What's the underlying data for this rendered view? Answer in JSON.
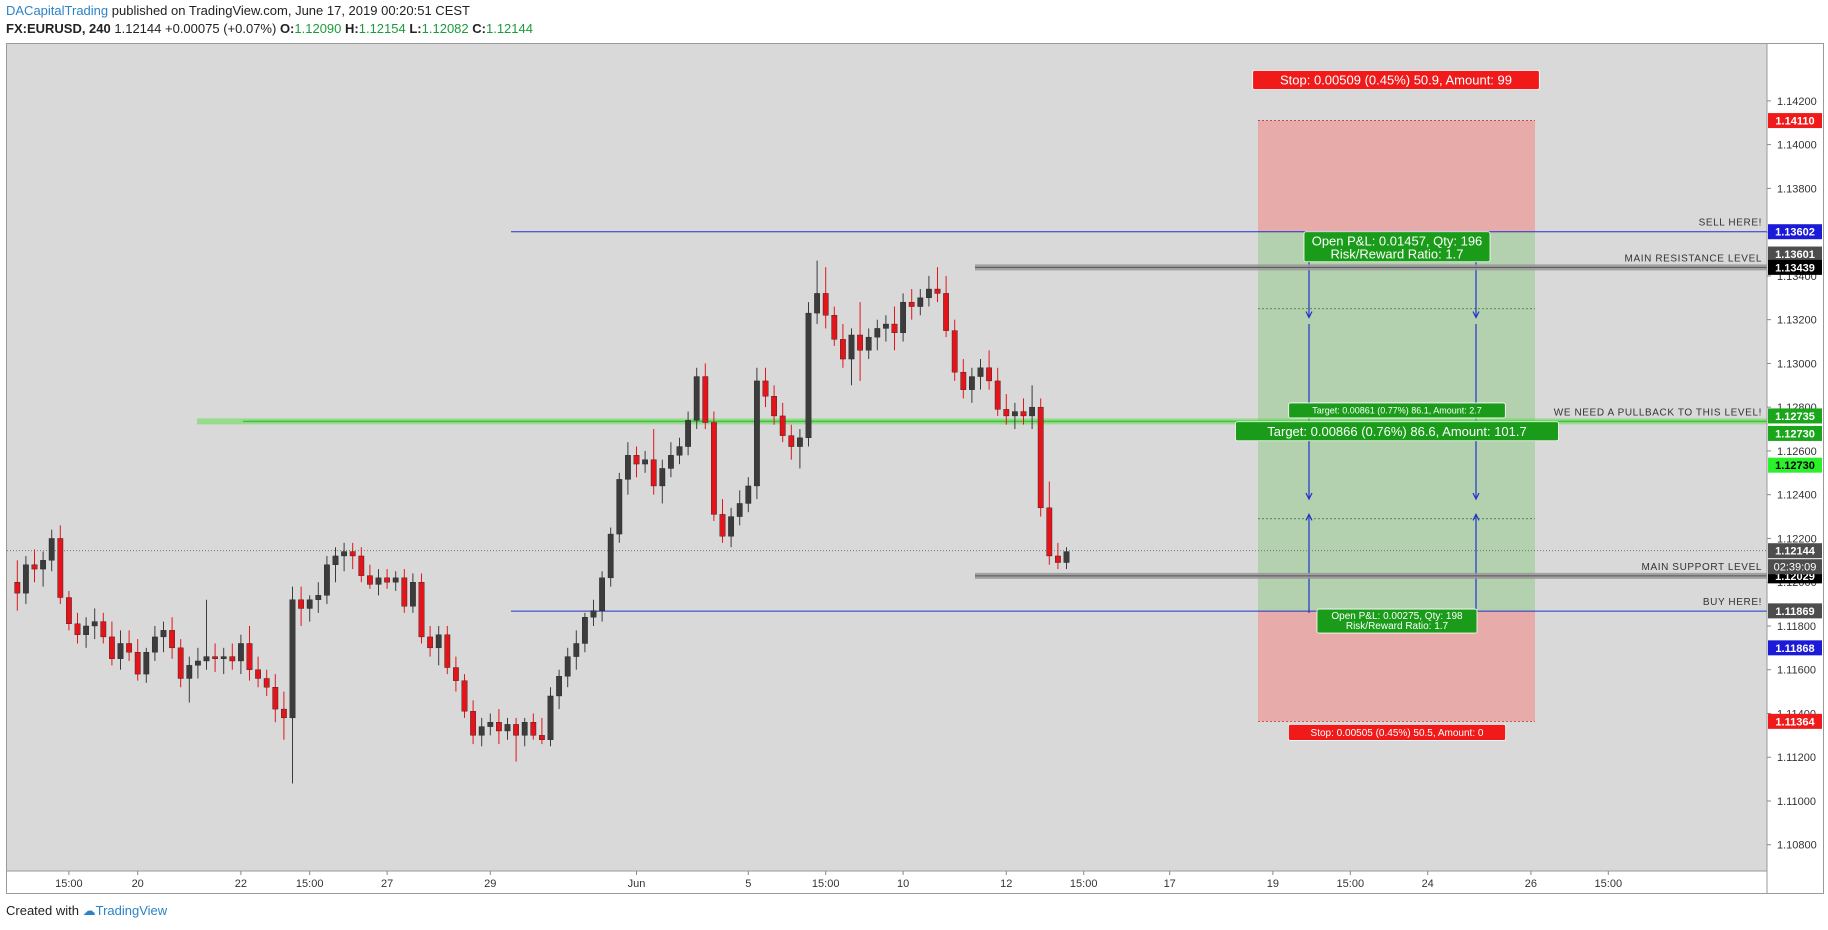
{
  "header": {
    "author": "DACapitalTrading",
    "published": "published on TradingView.com, June 17, 2019 00:20:51 CEST",
    "symbol": "FX:EURUSD, 240",
    "last": "1.12144",
    "change": "+0.00075 (+0.07%)",
    "o_label": "O:",
    "o_value": "1.12090",
    "h_label": "H:",
    "h_value": "1.12154",
    "l_label": "L:",
    "l_value": "1.12082",
    "c_label": "C:",
    "c_value": "1.12144"
  },
  "footer": {
    "created_with": "Created with",
    "brand": "TradingView"
  },
  "colors": {
    "background": "#d9d9d9",
    "candle_up": "#3c3c3c",
    "candle_down": "#e3151a",
    "stop_zone": "#e9a2a0",
    "target_zone": "#93c98c",
    "level_line": "#2233cc",
    "pullback_line": "#6ddc5c"
  },
  "chart_data": {
    "type": "candlestick",
    "symbol": "EURUSD",
    "timeframe": "240",
    "ylim": [
      1.1068,
      1.1446
    ],
    "y_ticks": [
      1.142,
      1.14,
      1.138,
      1.136,
      1.134,
      1.132,
      1.13,
      1.128,
      1.126,
      1.124,
      1.122,
      1.12,
      1.118,
      1.116,
      1.114,
      1.112,
      1.11,
      1.108
    ],
    "y_tick_labels": [
      "1.14200",
      "1.14000",
      "1.13800",
      "1.13600",
      "1.13400",
      "1.13200",
      "1.13000",
      "1.12800",
      "1.12600",
      "1.12400",
      "1.12200",
      "1.12000",
      "1.11800",
      "1.11600",
      "1.11400",
      "1.11200",
      "1.11000",
      "1.10800"
    ],
    "x_ticks": [
      {
        "label": "15:00",
        "bar": 6
      },
      {
        "label": "20",
        "bar": 14
      },
      {
        "label": "22",
        "bar": 26
      },
      {
        "label": "15:00",
        "bar": 34
      },
      {
        "label": "27",
        "bar": 43
      },
      {
        "label": "29",
        "bar": 55
      },
      {
        "label": "Jun",
        "bar": 72
      },
      {
        "label": "5",
        "bar": 85
      },
      {
        "label": "15:00",
        "bar": 94
      },
      {
        "label": "10",
        "bar": 103
      },
      {
        "label": "12",
        "bar": 115
      },
      {
        "label": "15:00",
        "bar": 124
      },
      {
        "label": "17",
        "bar": 134
      },
      {
        "label": "19",
        "bar": 146
      },
      {
        "label": "15:00",
        "bar": 155
      },
      {
        "label": "24",
        "bar": 164
      },
      {
        "label": "26",
        "bar": 176
      },
      {
        "label": "15:00",
        "bar": 185
      }
    ],
    "candles": [
      [
        1.12,
        1.121,
        1.1187,
        1.1195
      ],
      [
        1.1195,
        1.1212,
        1.119,
        1.1208
      ],
      [
        1.1208,
        1.1215,
        1.12,
        1.1206
      ],
      [
        1.1206,
        1.1214,
        1.1198,
        1.121
      ],
      [
        1.121,
        1.1224,
        1.1205,
        1.122
      ],
      [
        1.122,
        1.1226,
        1.119,
        1.1193
      ],
      [
        1.1193,
        1.1196,
        1.1178,
        1.1181
      ],
      [
        1.1181,
        1.1186,
        1.1172,
        1.1176
      ],
      [
        1.1176,
        1.1184,
        1.117,
        1.118
      ],
      [
        1.118,
        1.1188,
        1.1174,
        1.1182
      ],
      [
        1.1182,
        1.1186,
        1.1172,
        1.1175
      ],
      [
        1.1175,
        1.1182,
        1.1162,
        1.1165
      ],
      [
        1.1165,
        1.1178,
        1.116,
        1.1172
      ],
      [
        1.1172,
        1.1178,
        1.1164,
        1.1168
      ],
      [
        1.1168,
        1.1174,
        1.1155,
        1.1158
      ],
      [
        1.1158,
        1.117,
        1.1154,
        1.1168
      ],
      [
        1.1168,
        1.118,
        1.1164,
        1.1175
      ],
      [
        1.1175,
        1.1182,
        1.1168,
        1.1178
      ],
      [
        1.1178,
        1.1184,
        1.1165,
        1.117
      ],
      [
        1.117,
        1.1174,
        1.1152,
        1.1156
      ],
      [
        1.1156,
        1.1166,
        1.1145,
        1.1162
      ],
      [
        1.1162,
        1.117,
        1.1156,
        1.1164
      ],
      [
        1.1164,
        1.1192,
        1.116,
        1.1166
      ],
      [
        1.1166,
        1.1172,
        1.1159,
        1.1165
      ],
      [
        1.1165,
        1.117,
        1.1158,
        1.1166
      ],
      [
        1.1166,
        1.1172,
        1.116,
        1.1164
      ],
      [
        1.1164,
        1.1176,
        1.1158,
        1.1172
      ],
      [
        1.1172,
        1.118,
        1.1155,
        1.116
      ],
      [
        1.116,
        1.1166,
        1.1152,
        1.1156
      ],
      [
        1.1156,
        1.116,
        1.1148,
        1.1152
      ],
      [
        1.1152,
        1.1158,
        1.1136,
        1.1142
      ],
      [
        1.1142,
        1.115,
        1.1128,
        1.1138
      ],
      [
        1.1138,
        1.1198,
        1.1108,
        1.1192
      ],
      [
        1.1192,
        1.1198,
        1.118,
        1.1188
      ],
      [
        1.1188,
        1.1194,
        1.1182,
        1.1192
      ],
      [
        1.1192,
        1.12,
        1.1186,
        1.1194
      ],
      [
        1.1194,
        1.1212,
        1.119,
        1.1208
      ],
      [
        1.1208,
        1.1216,
        1.12,
        1.1212
      ],
      [
        1.1212,
        1.1218,
        1.1205,
        1.1214
      ],
      [
        1.1214,
        1.1218,
        1.1206,
        1.1212
      ],
      [
        1.1212,
        1.1216,
        1.12,
        1.1203
      ],
      [
        1.1203,
        1.1208,
        1.1197,
        1.1199
      ],
      [
        1.1199,
        1.1206,
        1.1194,
        1.1202
      ],
      [
        1.1202,
        1.1206,
        1.1197,
        1.12
      ],
      [
        1.12,
        1.1205,
        1.1196,
        1.1202
      ],
      [
        1.1202,
        1.1206,
        1.1186,
        1.1189
      ],
      [
        1.1189,
        1.1204,
        1.1186,
        1.12
      ],
      [
        1.12,
        1.1204,
        1.1172,
        1.1175
      ],
      [
        1.1175,
        1.118,
        1.1166,
        1.117
      ],
      [
        1.117,
        1.118,
        1.1162,
        1.1176
      ],
      [
        1.1176,
        1.118,
        1.1158,
        1.1161
      ],
      [
        1.1161,
        1.1166,
        1.115,
        1.1155
      ],
      [
        1.1155,
        1.1158,
        1.1138,
        1.1141
      ],
      [
        1.1141,
        1.1146,
        1.1126,
        1.113
      ],
      [
        1.113,
        1.1138,
        1.1125,
        1.1134
      ],
      [
        1.1134,
        1.114,
        1.113,
        1.1136
      ],
      [
        1.1136,
        1.1142,
        1.1126,
        1.1132
      ],
      [
        1.1132,
        1.1138,
        1.1128,
        1.1135
      ],
      [
        1.1135,
        1.1138,
        1.1118,
        1.113
      ],
      [
        1.113,
        1.1138,
        1.1125,
        1.1136
      ],
      [
        1.1136,
        1.114,
        1.1128,
        1.113
      ],
      [
        1.113,
        1.1138,
        1.1126,
        1.1128
      ],
      [
        1.1128,
        1.1152,
        1.1125,
        1.1148
      ],
      [
        1.1148,
        1.116,
        1.1142,
        1.1157
      ],
      [
        1.1157,
        1.117,
        1.1152,
        1.1166
      ],
      [
        1.1166,
        1.1178,
        1.116,
        1.1172
      ],
      [
        1.1172,
        1.1186,
        1.1168,
        1.1184
      ],
      [
        1.1184,
        1.1192,
        1.118,
        1.1187
      ],
      [
        1.1187,
        1.1205,
        1.1182,
        1.1202
      ],
      [
        1.1202,
        1.1225,
        1.1198,
        1.1222
      ],
      [
        1.1222,
        1.125,
        1.1218,
        1.1247
      ],
      [
        1.1247,
        1.1264,
        1.124,
        1.1258
      ],
      [
        1.1258,
        1.1262,
        1.1248,
        1.1254
      ],
      [
        1.1254,
        1.126,
        1.125,
        1.1256
      ],
      [
        1.1256,
        1.127,
        1.124,
        1.1244
      ],
      [
        1.1244,
        1.1256,
        1.1236,
        1.1252
      ],
      [
        1.1252,
        1.1264,
        1.1248,
        1.1258
      ],
      [
        1.1258,
        1.1266,
        1.1254,
        1.1262
      ],
      [
        1.1262,
        1.1278,
        1.1258,
        1.1274
      ],
      [
        1.1274,
        1.1298,
        1.127,
        1.1294
      ],
      [
        1.1294,
        1.13,
        1.127,
        1.1273
      ],
      [
        1.1273,
        1.1278,
        1.1228,
        1.1231
      ],
      [
        1.1231,
        1.1238,
        1.1218,
        1.1221
      ],
      [
        1.1221,
        1.1234,
        1.1216,
        1.123
      ],
      [
        1.123,
        1.1242,
        1.1226,
        1.1236
      ],
      [
        1.1236,
        1.1248,
        1.1232,
        1.1244
      ],
      [
        1.1244,
        1.1298,
        1.1238,
        1.1292
      ],
      [
        1.1292,
        1.1298,
        1.128,
        1.1285
      ],
      [
        1.1285,
        1.129,
        1.1272,
        1.1276
      ],
      [
        1.1276,
        1.1282,
        1.1264,
        1.1267
      ],
      [
        1.1267,
        1.1272,
        1.1256,
        1.1262
      ],
      [
        1.1262,
        1.127,
        1.1252,
        1.1266
      ],
      [
        1.1266,
        1.1328,
        1.1262,
        1.1323
      ],
      [
        1.1323,
        1.1347,
        1.1318,
        1.1332
      ],
      [
        1.1332,
        1.1344,
        1.1316,
        1.1322
      ],
      [
        1.1322,
        1.1326,
        1.1308,
        1.1311
      ],
      [
        1.1311,
        1.1318,
        1.1298,
        1.1302
      ],
      [
        1.1302,
        1.1316,
        1.129,
        1.1313
      ],
      [
        1.1313,
        1.1328,
        1.1292,
        1.1306
      ],
      [
        1.1306,
        1.1316,
        1.1302,
        1.1312
      ],
      [
        1.1312,
        1.132,
        1.1306,
        1.1316
      ],
      [
        1.1316,
        1.1322,
        1.131,
        1.1318
      ],
      [
        1.1318,
        1.1326,
        1.1306,
        1.1314
      ],
      [
        1.1314,
        1.1332,
        1.131,
        1.1328
      ],
      [
        1.1328,
        1.1334,
        1.132,
        1.1326
      ],
      [
        1.1326,
        1.1334,
        1.1322,
        1.133
      ],
      [
        1.133,
        1.134,
        1.1326,
        1.1334
      ],
      [
        1.1334,
        1.1344,
        1.1328,
        1.1332
      ],
      [
        1.1332,
        1.134,
        1.1312,
        1.1315
      ],
      [
        1.1315,
        1.132,
        1.1292,
        1.1296
      ],
      [
        1.1296,
        1.1302,
        1.1284,
        1.1288
      ],
      [
        1.1288,
        1.1298,
        1.1282,
        1.1294
      ],
      [
        1.1294,
        1.1302,
        1.1288,
        1.1298
      ],
      [
        1.1298,
        1.1306,
        1.1288,
        1.1292
      ],
      [
        1.1292,
        1.1298,
        1.1276,
        1.1279
      ],
      [
        1.1279,
        1.1286,
        1.1272,
        1.1276
      ],
      [
        1.1276,
        1.1282,
        1.127,
        1.1278
      ],
      [
        1.1278,
        1.1284,
        1.1272,
        1.1276
      ],
      [
        1.1276,
        1.129,
        1.127,
        1.128
      ],
      [
        1.128,
        1.1284,
        1.123,
        1.1234
      ],
      [
        1.1234,
        1.1246,
        1.1208,
        1.1212
      ],
      [
        1.1212,
        1.1218,
        1.1206,
        1.1209
      ],
      [
        1.1209,
        1.1216,
        1.1206,
        1.1214
      ]
    ],
    "levels": [
      {
        "name": "SELL HERE!",
        "price": 1.13602
      },
      {
        "name": "MAIN RESISTANCE LEVEL",
        "price": 1.13439
      },
      {
        "name": "WE NEED A PULLBACK TO THIS LEVEL!",
        "price": 1.12735
      },
      {
        "name": "MAIN SUPPORT LEVEL",
        "price": 1.12029
      },
      {
        "name": "BUY HERE!",
        "price": 1.11868
      }
    ],
    "last_price": {
      "price": 1.12144,
      "countdown": "02:39:09"
    },
    "price_labels": [
      {
        "text": "1.14110",
        "price": 1.1411,
        "bg": "#f01a1a",
        "fg": "#ffffff"
      },
      {
        "text": "1.13602",
        "price": 1.13602,
        "bg": "#1a1ad8",
        "fg": "#ffffff"
      },
      {
        "text": "1.13601",
        "price": 1.135,
        "bg": "#4d4d4d",
        "fg": "#ffffff"
      },
      {
        "text": "1.13439",
        "price": 1.13439,
        "bg": "#000000",
        "fg": "#ffffff"
      },
      {
        "text": "1.12735",
        "price": 1.1276,
        "bg": "#1aa61a",
        "fg": "#ffffff"
      },
      {
        "text": "1.12730",
        "price": 1.1268,
        "bg": "#1aa61a",
        "fg": "#ffffff"
      },
      {
        "text": "1.12730",
        "price": 1.12535,
        "bg": "#2bf02b",
        "fg": "#000000"
      },
      {
        "text": "1.12144",
        "price": 1.12144,
        "bg": "#4d4d4d",
        "fg": "#ffffff"
      },
      {
        "text": "1.12029",
        "price": 1.12029,
        "bg": "#000000",
        "fg": "#ffffff"
      },
      {
        "text": "1.11869",
        "price": 1.11869,
        "bg": "#4d4d4d",
        "fg": "#ffffff"
      },
      {
        "text": "1.11868",
        "price": 1.117,
        "bg": "#1a1ad8",
        "fg": "#ffffff"
      },
      {
        "text": "1.11364",
        "price": 1.11364,
        "bg": "#f01a1a",
        "fg": "#ffffff"
      }
    ],
    "short_position": {
      "entry": 1.13602,
      "stop": 1.1411,
      "target": 1.12735,
      "stop_label": "Stop: 0.00509 (0.45%) 50.9, Amount: 99",
      "pnl_label": "Open P&L: 0.01457, Qty: 196",
      "rr_label": "Risk/Reward Ratio: 1.7",
      "target_label": "Target: 0.00866 (0.76%) 86.6, Amount: 101.7"
    },
    "long_position": {
      "entry": 1.11868,
      "stop": 1.11364,
      "target": 1.1273,
      "stop_label": "Stop: 0.00505 (0.45%) 50.5, Amount: 0",
      "pnl_label": "Open P&L: 0.00275, Qty: 198",
      "rr_label": "Risk/Reward Ratio: 1.7",
      "target_label": "Target: 0.00861 (0.77%) 86.1, Amount: 2.7"
    }
  }
}
